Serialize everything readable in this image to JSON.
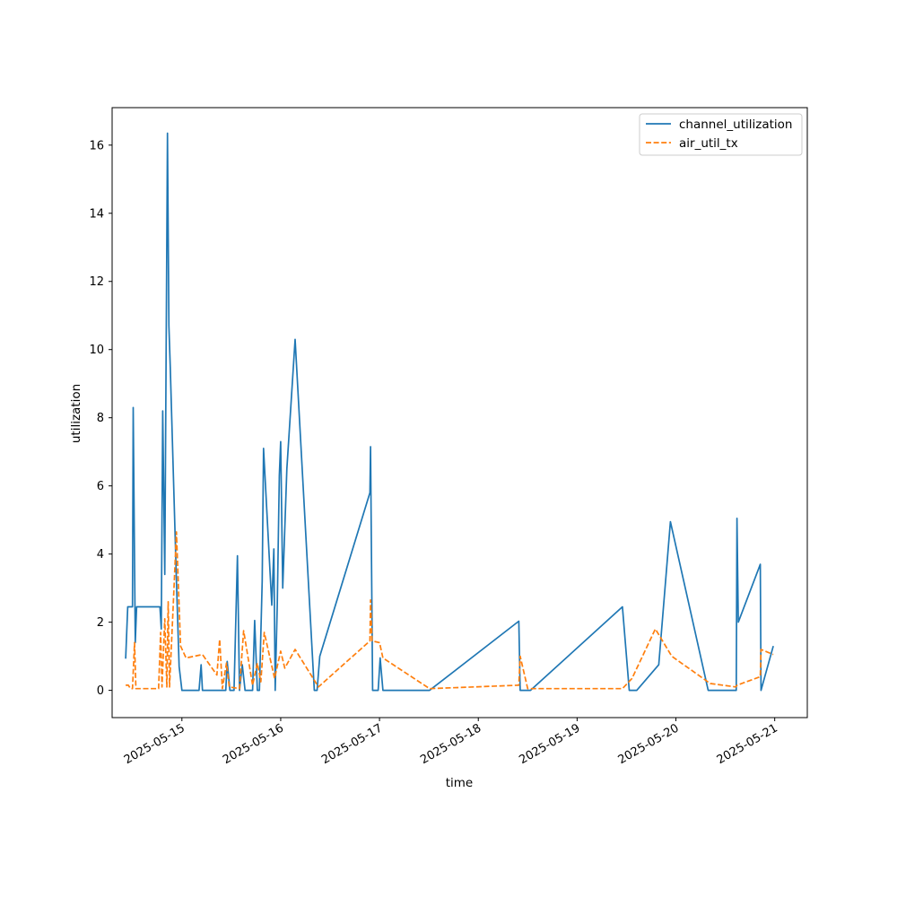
{
  "chart_data": {
    "type": "line",
    "title": "",
    "xlabel": "time",
    "ylabel": "utilization",
    "x_ticks": [
      "2025-05-15",
      "2025-05-16",
      "2025-05-17",
      "2025-05-18",
      "2025-05-19",
      "2025-05-20",
      "2025-05-21"
    ],
    "y_ticks": [
      0,
      2,
      4,
      6,
      8,
      10,
      12,
      14,
      16
    ],
    "xlim": [
      "2025-05-14T07:03",
      "2025-05-21T07:55"
    ],
    "ylim": [
      -0.8,
      17.1
    ],
    "grid": false,
    "legend_position": "top-right",
    "series": [
      {
        "name": "channel_utilization",
        "color": "#1f77b4",
        "style": "solid",
        "points": [
          [
            "2025-05-14T10:20",
            0.93
          ],
          [
            "2025-05-14T10:50",
            2.45
          ],
          [
            "2025-05-14T12:00",
            2.45
          ],
          [
            "2025-05-14T12:10",
            8.3
          ],
          [
            "2025-05-14T12:40",
            1.4
          ],
          [
            "2025-05-14T13:00",
            2.45
          ],
          [
            "2025-05-14T18:40",
            2.45
          ],
          [
            "2025-05-14T19:00",
            1.8
          ],
          [
            "2025-05-14T19:20",
            8.2
          ],
          [
            "2025-05-14T19:50",
            3.4
          ],
          [
            "2025-05-14T20:30",
            16.35
          ],
          [
            "2025-05-14T20:50",
            10.7
          ],
          [
            "2025-05-14T21:10",
            9.5
          ],
          [
            "2025-05-14T22:40",
            3.2
          ],
          [
            "2025-05-14T23:20",
            0.7
          ],
          [
            "2025-05-15T00:00",
            0.0
          ],
          [
            "2025-05-15T04:10",
            0.0
          ],
          [
            "2025-05-15T04:40",
            0.75
          ],
          [
            "2025-05-15T05:00",
            0.0
          ],
          [
            "2025-05-15T10:40",
            0.0
          ],
          [
            "2025-05-15T11:00",
            0.85
          ],
          [
            "2025-05-15T11:40",
            0.0
          ],
          [
            "2025-05-15T12:40",
            0.0
          ],
          [
            "2025-05-15T13:30",
            3.95
          ],
          [
            "2025-05-15T14:00",
            0.0
          ],
          [
            "2025-05-15T14:40",
            0.75
          ],
          [
            "2025-05-15T15:20",
            0.0
          ],
          [
            "2025-05-15T17:10",
            0.0
          ],
          [
            "2025-05-15T17:40",
            2.05
          ],
          [
            "2025-05-15T18:20",
            0.0
          ],
          [
            "2025-05-15T18:50",
            0.0
          ],
          [
            "2025-05-15T19:30",
            3.2
          ],
          [
            "2025-05-15T19:50",
            7.1
          ],
          [
            "2025-05-15T21:50",
            2.5
          ],
          [
            "2025-05-15T22:20",
            4.15
          ],
          [
            "2025-05-15T22:40",
            0.0
          ],
          [
            "2025-05-15T23:10",
            2.5
          ],
          [
            "2025-05-15T23:40",
            6.3
          ],
          [
            "2025-05-16T00:00",
            7.3
          ],
          [
            "2025-05-16T00:30",
            3.0
          ],
          [
            "2025-05-16T01:30",
            6.5
          ],
          [
            "2025-05-16T03:30",
            10.3
          ],
          [
            "2025-05-16T08:10",
            0.0
          ],
          [
            "2025-05-16T08:50",
            0.0
          ],
          [
            "2025-05-16T09:30",
            1.0
          ],
          [
            "2025-05-16T21:40",
            5.8
          ],
          [
            "2025-05-16T21:50",
            7.15
          ],
          [
            "2025-05-16T22:20",
            0.0
          ],
          [
            "2025-05-16T23:40",
            0.0
          ],
          [
            "2025-05-17T00:10",
            0.95
          ],
          [
            "2025-05-17T00:50",
            0.0
          ],
          [
            "2025-05-17T12:10",
            0.0
          ],
          [
            "2025-05-18T09:50",
            2.03
          ],
          [
            "2025-05-18T10:10",
            0.0
          ],
          [
            "2025-05-18T12:40",
            0.0
          ],
          [
            "2025-05-19T11:00",
            2.45
          ],
          [
            "2025-05-19T12:40",
            0.0
          ],
          [
            "2025-05-19T14:30",
            0.0
          ],
          [
            "2025-05-19T19:50",
            0.75
          ],
          [
            "2025-05-19T22:40",
            4.95
          ],
          [
            "2025-05-20T07:50",
            0.0
          ],
          [
            "2025-05-20T14:40",
            0.0
          ],
          [
            "2025-05-20T14:50",
            5.05
          ],
          [
            "2025-05-20T15:10",
            2.0
          ],
          [
            "2025-05-20T20:30",
            3.7
          ],
          [
            "2025-05-20T20:40",
            0.0
          ],
          [
            "2025-05-20T23:40",
            1.3
          ]
        ]
      },
      {
        "name": "air_util_tx",
        "color": "#ff7f0e",
        "style": "dashed",
        "points": [
          [
            "2025-05-14T10:20",
            0.15
          ],
          [
            "2025-05-14T11:00",
            0.15
          ],
          [
            "2025-05-14T11:30",
            0.05
          ],
          [
            "2025-05-14T12:00",
            0.05
          ],
          [
            "2025-05-14T12:30",
            1.4
          ],
          [
            "2025-05-14T12:50",
            0.05
          ],
          [
            "2025-05-14T18:20",
            0.05
          ],
          [
            "2025-05-14T18:50",
            1.7
          ],
          [
            "2025-05-14T19:10",
            0.1
          ],
          [
            "2025-05-14T19:50",
            2.1
          ],
          [
            "2025-05-14T20:20",
            0.1
          ],
          [
            "2025-05-14T20:40",
            2.6
          ],
          [
            "2025-05-14T21:00",
            0.1
          ],
          [
            "2025-05-14T21:50",
            2.3
          ],
          [
            "2025-05-14T22:40",
            4.65
          ],
          [
            "2025-05-14T23:40",
            1.3
          ],
          [
            "2025-05-15T01:00",
            0.95
          ],
          [
            "2025-05-15T05:00",
            1.05
          ],
          [
            "2025-05-15T08:30",
            0.45
          ],
          [
            "2025-05-15T09:10",
            1.5
          ],
          [
            "2025-05-15T09:50",
            0.05
          ],
          [
            "2025-05-15T10:50",
            0.8
          ],
          [
            "2025-05-15T11:30",
            0.1
          ],
          [
            "2025-05-15T14:00",
            0.05
          ],
          [
            "2025-05-15T15:00",
            1.75
          ],
          [
            "2025-05-15T17:10",
            0.15
          ],
          [
            "2025-05-15T18:20",
            0.8
          ],
          [
            "2025-05-15T19:10",
            0.25
          ],
          [
            "2025-05-15T20:00",
            1.7
          ],
          [
            "2025-05-15T22:30",
            0.35
          ],
          [
            "2025-05-16T00:00",
            1.15
          ],
          [
            "2025-05-16T01:00",
            0.65
          ],
          [
            "2025-05-16T03:30",
            1.2
          ],
          [
            "2025-05-16T09:10",
            0.1
          ],
          [
            "2025-05-16T21:40",
            1.45
          ],
          [
            "2025-05-16T21:50",
            2.65
          ],
          [
            "2025-05-16T22:10",
            1.45
          ],
          [
            "2025-05-17T00:00",
            1.4
          ],
          [
            "2025-05-17T00:50",
            0.95
          ],
          [
            "2025-05-17T12:10",
            0.05
          ],
          [
            "2025-05-18T09:50",
            0.15
          ],
          [
            "2025-05-18T10:10",
            1.0
          ],
          [
            "2025-05-18T12:00",
            0.05
          ],
          [
            "2025-05-19T11:00",
            0.05
          ],
          [
            "2025-05-19T13:20",
            0.35
          ],
          [
            "2025-05-19T19:00",
            1.8
          ],
          [
            "2025-05-19T23:00",
            1.0
          ],
          [
            "2025-05-20T08:20",
            0.2
          ],
          [
            "2025-05-20T14:30",
            0.1
          ],
          [
            "2025-05-20T14:50",
            0.15
          ],
          [
            "2025-05-20T20:30",
            0.4
          ],
          [
            "2025-05-20T20:40",
            1.2
          ],
          [
            "2025-05-20T23:40",
            1.05
          ]
        ]
      }
    ]
  }
}
